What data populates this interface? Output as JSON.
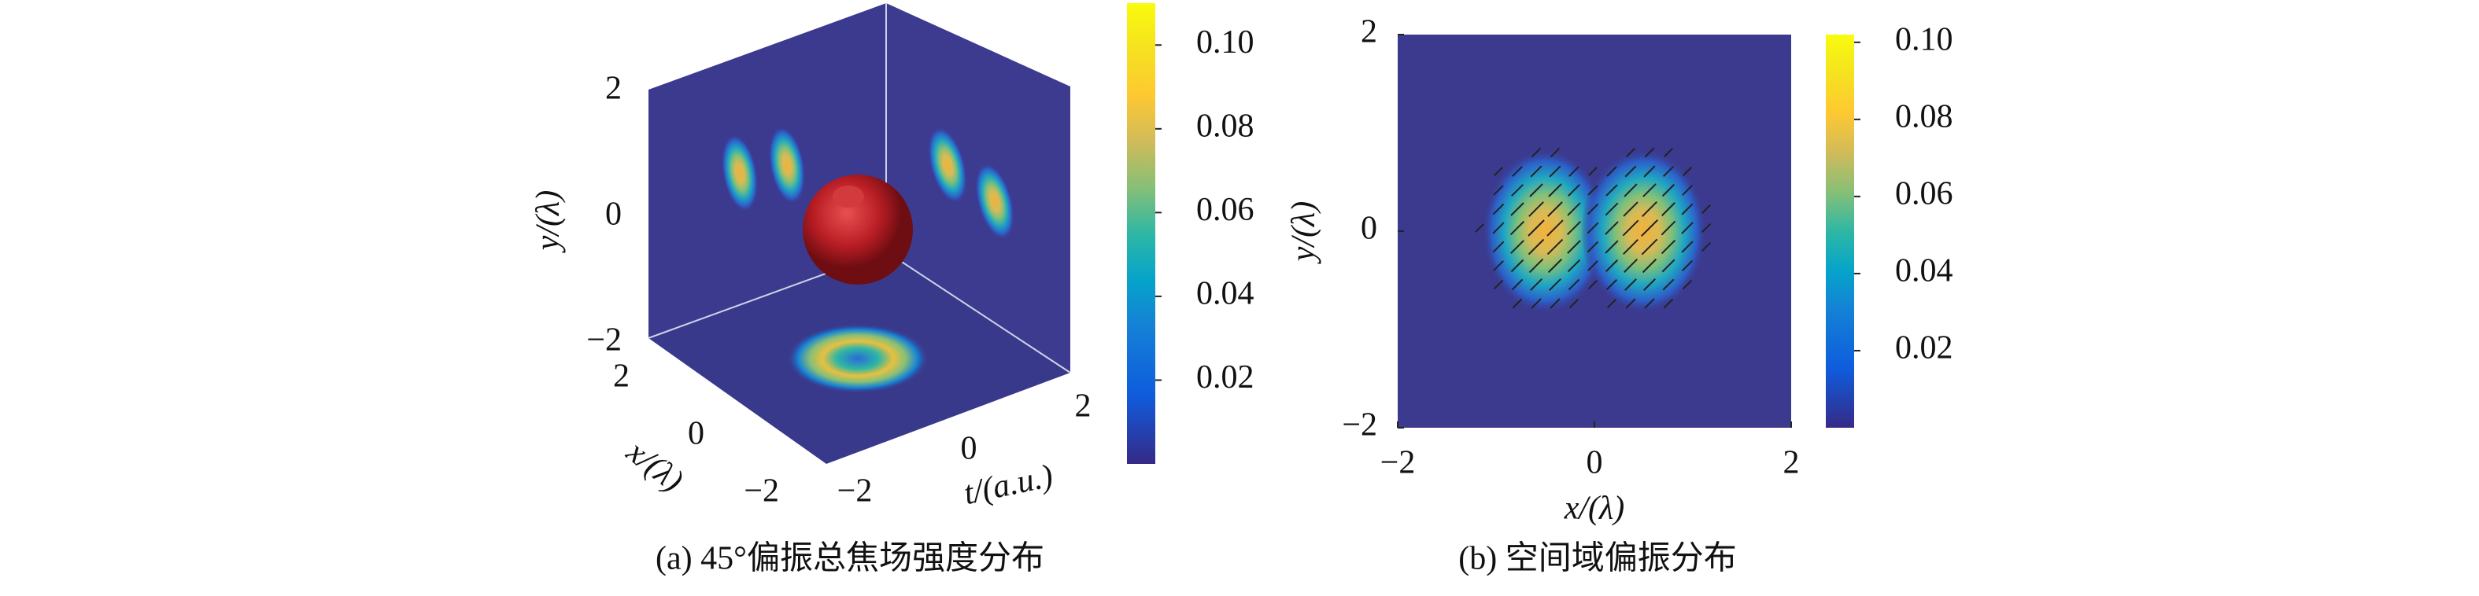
{
  "chart_data": [
    {
      "type": "isosurface3d",
      "xlabel": "x/(λ)",
      "ylabel": "y/(λ)",
      "zlabel": "t/(a.u.)",
      "xlim": [
        -2,
        2
      ],
      "ylim": [
        -2,
        2
      ],
      "zlim": [
        -2,
        2
      ],
      "xticks": [
        {
          "value": -2,
          "label": "−2"
        },
        0,
        2
      ],
      "yticks": [
        {
          "value": -2,
          "label": "−2"
        },
        0,
        2
      ],
      "zticks": [
        {
          "value": -2,
          "label": "−2"
        },
        0,
        2
      ],
      "colorbar": {
        "clim": [
          0,
          0.11
        ],
        "ticks": [
          0.02,
          0.04,
          0.06,
          0.08,
          {
            "value": 0.1,
            "label": "0.10"
          }
        ]
      },
      "caption": "(a) 45°偏振总焦场强度分布"
    },
    {
      "type": "heatmap",
      "xlabel": "x/(λ)",
      "ylabel": "y/(λ)",
      "xlim": [
        -2,
        2
      ],
      "ylim": [
        -2,
        2
      ],
      "xticks": [
        {
          "value": -2,
          "label": "−2"
        },
        0,
        2
      ],
      "yticks": [
        {
          "value": -2,
          "label": "−2"
        },
        0,
        2
      ],
      "colorbar": {
        "clim": [
          0,
          0.102
        ],
        "ticks": [
          0.02,
          0.04,
          0.06,
          0.08,
          {
            "value": 0.1,
            "label": "0.10"
          }
        ]
      },
      "caption": "(b) 空间域偏振分布"
    }
  ]
}
